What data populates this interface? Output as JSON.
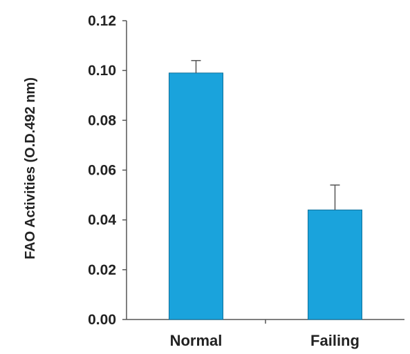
{
  "chart_data": {
    "type": "bar",
    "title": "",
    "xlabel": "",
    "ylabel": "FAO Activities (O.D.492 nm)",
    "categories": [
      "Normal",
      "Failing"
    ],
    "values": [
      0.099,
      0.044
    ],
    "error_plus": [
      0.005,
      0.01
    ],
    "ylim": [
      0,
      0.12
    ],
    "yticks": [
      "0.00",
      "0.02",
      "0.04",
      "0.06",
      "0.08",
      "0.10",
      "0.12"
    ],
    "bar_color": "#1aa3dc",
    "bar_edge_color": "#0e6f99",
    "grid": false,
    "legend": "none"
  }
}
